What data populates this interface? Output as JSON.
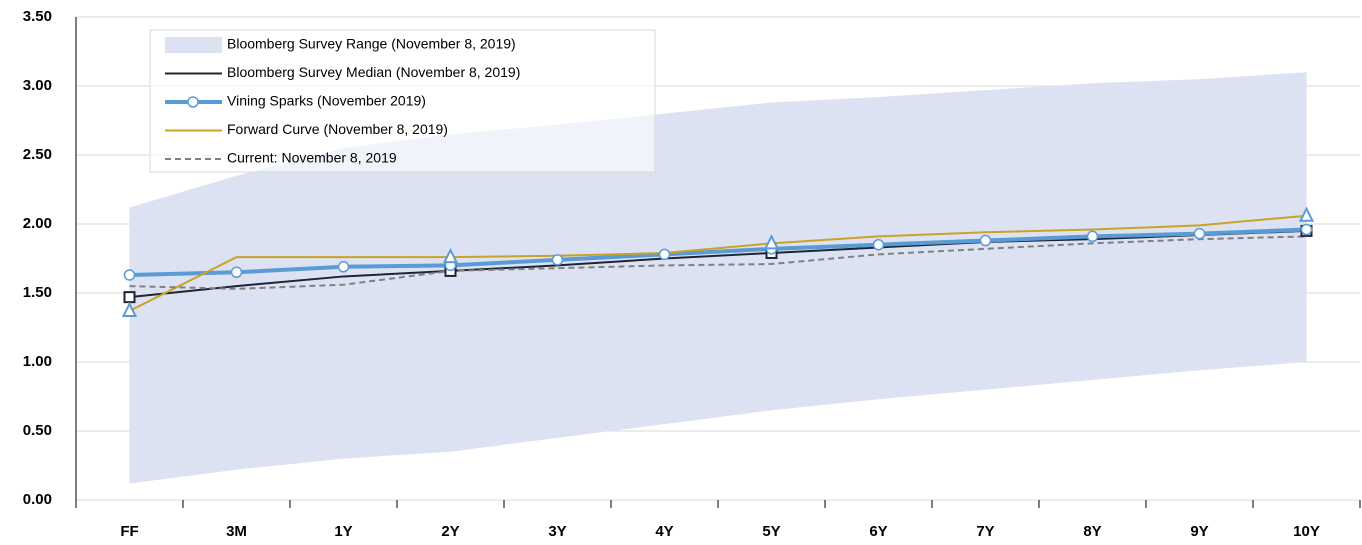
{
  "chart_data": {
    "type": "line",
    "categories": [
      "FF",
      "3M",
      "1Y",
      "2Y",
      "3Y",
      "4Y",
      "5Y",
      "6Y",
      "7Y",
      "8Y",
      "9Y",
      "10Y"
    ],
    "ylim": [
      0,
      3.5
    ],
    "yticks": [
      {
        "value": 0,
        "label": "0.00"
      },
      {
        "value": 0.5,
        "label": "0.50"
      },
      {
        "value": 1,
        "label": "1.00"
      },
      {
        "value": 1.5,
        "label": "1.50"
      },
      {
        "value": 2,
        "label": "2.00"
      },
      {
        "value": 2.5,
        "label": "2.50"
      },
      {
        "value": 3,
        "label": "3.00"
      },
      {
        "value": 3.5,
        "label": "3.50"
      }
    ],
    "grid": true,
    "legend": "top-left",
    "series": [
      {
        "name": "Bloomberg Survey Range (November 8, 2019)",
        "color": "#dde2f2",
        "kind": "range",
        "low": [
          0.12,
          0.22,
          0.3,
          0.35,
          0.45,
          0.55,
          0.65,
          0.73,
          0.8,
          0.87,
          0.94,
          1.0
        ],
        "high": [
          2.12,
          2.35,
          2.55,
          2.65,
          2.72,
          2.8,
          2.88,
          2.92,
          2.97,
          3.02,
          3.05,
          3.1
        ]
      },
      {
        "name": "Bloomberg Survey Median (November 8, 2019)",
        "color": "#1f2433",
        "width": 2,
        "marker": "square",
        "marker_at": [
          0,
          3,
          6,
          11
        ],
        "values": [
          1.47,
          1.55,
          1.62,
          1.66,
          1.7,
          1.75,
          1.79,
          1.83,
          1.87,
          1.89,
          1.92,
          1.95
        ]
      },
      {
        "name": "Vining Sparks (November 2019)",
        "color": "#5b9bd5",
        "width": 4,
        "marker": "circle",
        "marker_at": [
          0,
          1,
          2,
          3,
          4,
          5,
          6,
          7,
          8,
          9,
          10,
          11
        ],
        "values": [
          1.63,
          1.65,
          1.69,
          1.7,
          1.74,
          1.78,
          1.82,
          1.85,
          1.88,
          1.91,
          1.93,
          1.96
        ]
      },
      {
        "name": "Forward Curve (November 8, 2019)",
        "color": "#c9a227",
        "width": 2,
        "marker": "triangle",
        "marker_at": [
          0,
          3,
          6,
          11
        ],
        "values": [
          1.37,
          1.76,
          1.76,
          1.76,
          1.77,
          1.79,
          1.86,
          1.91,
          1.94,
          1.96,
          1.99,
          2.06
        ]
      },
      {
        "name": "Current: November 8, 2019",
        "color": "#808080",
        "width": 2,
        "dash": true,
        "values": [
          1.55,
          1.53,
          1.56,
          1.66,
          1.68,
          1.7,
          1.71,
          1.78,
          1.82,
          1.86,
          1.89,
          1.91
        ]
      }
    ]
  }
}
